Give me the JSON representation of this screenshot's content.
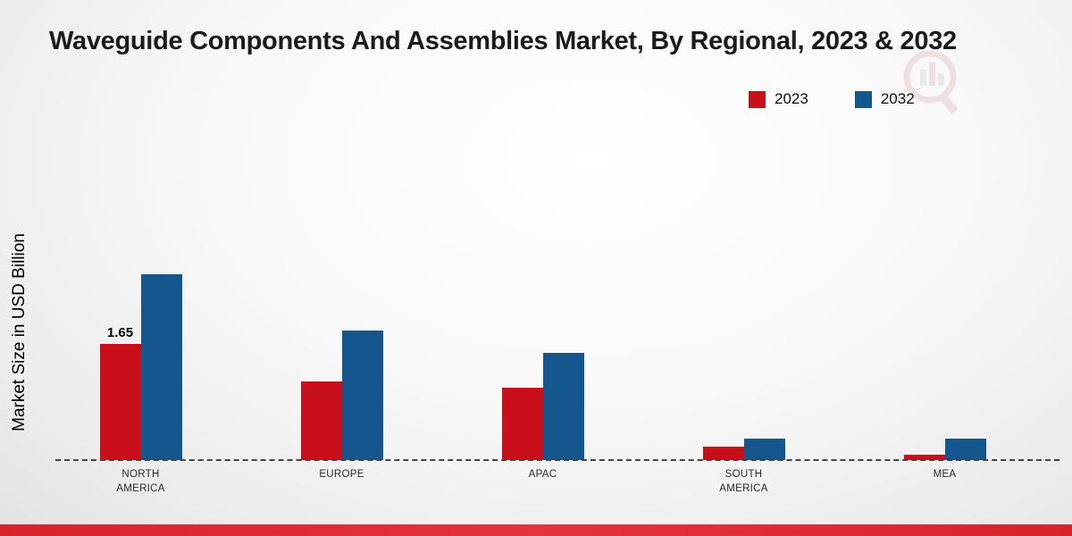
{
  "page": {
    "title": "Waveguide Components And Assemblies Market, By Regional, 2023 & 2032",
    "ylabel": "Market Size in USD Billion"
  },
  "legend": {
    "items": [
      {
        "label": "2023",
        "color": "#c9101a"
      },
      {
        "label": "2032",
        "color": "#16568f"
      }
    ]
  },
  "footer": {
    "bar_color": "#d8232b"
  },
  "chart_data": {
    "type": "bar",
    "title": "Waveguide Components And Assemblies Market, By Regional, 2023 & 2032",
    "xlabel": "",
    "ylabel": "Market Size in USD Billion",
    "categories": [
      "NORTH AMERICA",
      "EUROPE",
      "APAC",
      "SOUTH AMERICA",
      "MEA"
    ],
    "series": [
      {
        "name": "2023",
        "color": "#c9101a",
        "values": [
          1.65,
          1.12,
          1.02,
          0.19,
          0.08
        ]
      },
      {
        "name": "2032",
        "color": "#16568f",
        "values": [
          2.63,
          1.84,
          1.52,
          0.3,
          0.31
        ]
      }
    ],
    "data_labels": [
      {
        "series": "2023",
        "category": "NORTH AMERICA",
        "text": "1.65"
      }
    ],
    "ylim": [
      0,
      3.4
    ],
    "grid": false,
    "legend_position": "top-right",
    "baseline": "dashed"
  }
}
